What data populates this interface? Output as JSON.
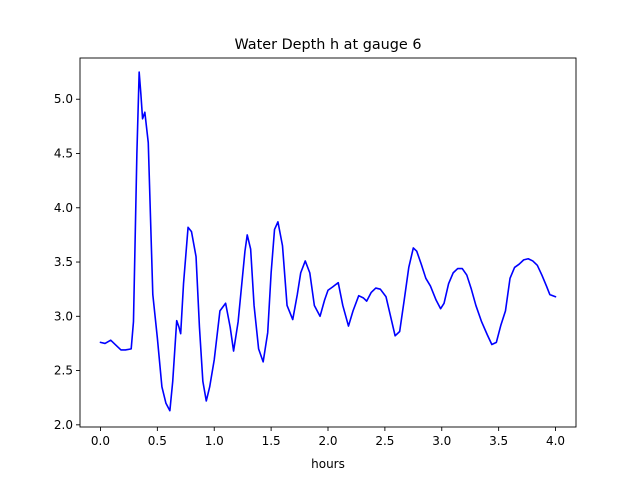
{
  "chart_data": {
    "type": "line",
    "title": "Water Depth h at gauge 6",
    "xlabel": "hours",
    "ylabel": "",
    "xlim": [
      -0.18,
      4.18
    ],
    "ylim": [
      1.98,
      5.38
    ],
    "xticks": [
      0.0,
      0.5,
      1.0,
      1.5,
      2.0,
      2.5,
      3.0,
      3.5,
      4.0
    ],
    "xtick_labels": [
      "0.0",
      "0.5",
      "1.0",
      "1.5",
      "2.0",
      "2.5",
      "3.0",
      "3.5",
      "4.0"
    ],
    "yticks": [
      2.0,
      2.5,
      3.0,
      3.5,
      4.0,
      4.5,
      5.0
    ],
    "ytick_labels": [
      "2.0",
      "2.5",
      "3.0",
      "3.5",
      "4.0",
      "4.5",
      "5.0"
    ],
    "grid": false,
    "legend": "none",
    "series": [
      {
        "color": "#0000ff",
        "points": [
          [
            0.0,
            2.76
          ],
          [
            0.04,
            2.75
          ],
          [
            0.09,
            2.78
          ],
          [
            0.13,
            2.74
          ],
          [
            0.18,
            2.69
          ],
          [
            0.22,
            2.69
          ],
          [
            0.27,
            2.7
          ],
          [
            0.29,
            2.95
          ],
          [
            0.32,
            4.5
          ],
          [
            0.34,
            5.25
          ],
          [
            0.355,
            5.05
          ],
          [
            0.37,
            4.82
          ],
          [
            0.39,
            4.88
          ],
          [
            0.42,
            4.6
          ],
          [
            0.46,
            3.2
          ],
          [
            0.5,
            2.8
          ],
          [
            0.54,
            2.35
          ],
          [
            0.575,
            2.2
          ],
          [
            0.61,
            2.13
          ],
          [
            0.635,
            2.4
          ],
          [
            0.67,
            2.96
          ],
          [
            0.69,
            2.9
          ],
          [
            0.705,
            2.84
          ],
          [
            0.73,
            3.3
          ],
          [
            0.77,
            3.82
          ],
          [
            0.8,
            3.78
          ],
          [
            0.84,
            3.55
          ],
          [
            0.87,
            2.9
          ],
          [
            0.9,
            2.4
          ],
          [
            0.93,
            2.22
          ],
          [
            0.96,
            2.35
          ],
          [
            1.0,
            2.6
          ],
          [
            1.05,
            3.05
          ],
          [
            1.1,
            3.12
          ],
          [
            1.14,
            2.9
          ],
          [
            1.17,
            2.68
          ],
          [
            1.21,
            2.95
          ],
          [
            1.27,
            3.6
          ],
          [
            1.29,
            3.75
          ],
          [
            1.32,
            3.62
          ],
          [
            1.35,
            3.1
          ],
          [
            1.39,
            2.7
          ],
          [
            1.43,
            2.58
          ],
          [
            1.47,
            2.85
          ],
          [
            1.5,
            3.4
          ],
          [
            1.53,
            3.8
          ],
          [
            1.56,
            3.87
          ],
          [
            1.6,
            3.65
          ],
          [
            1.64,
            3.1
          ],
          [
            1.69,
            2.97
          ],
          [
            1.73,
            3.2
          ],
          [
            1.76,
            3.4
          ],
          [
            1.8,
            3.51
          ],
          [
            1.84,
            3.4
          ],
          [
            1.88,
            3.1
          ],
          [
            1.93,
            3.0
          ],
          [
            1.97,
            3.15
          ],
          [
            2.0,
            3.24
          ],
          [
            2.04,
            3.27
          ],
          [
            2.09,
            3.31
          ],
          [
            2.13,
            3.1
          ],
          [
            2.18,
            2.91
          ],
          [
            2.22,
            3.05
          ],
          [
            2.27,
            3.19
          ],
          [
            2.31,
            3.17
          ],
          [
            2.34,
            3.14
          ],
          [
            2.38,
            3.22
          ],
          [
            2.42,
            3.26
          ],
          [
            2.46,
            3.25
          ],
          [
            2.51,
            3.18
          ],
          [
            2.55,
            3.0
          ],
          [
            2.59,
            2.82
          ],
          [
            2.63,
            2.86
          ],
          [
            2.67,
            3.15
          ],
          [
            2.71,
            3.45
          ],
          [
            2.75,
            3.63
          ],
          [
            2.78,
            3.6
          ],
          [
            2.82,
            3.48
          ],
          [
            2.86,
            3.35
          ],
          [
            2.9,
            3.28
          ],
          [
            2.95,
            3.15
          ],
          [
            2.99,
            3.07
          ],
          [
            3.02,
            3.12
          ],
          [
            3.06,
            3.3
          ],
          [
            3.1,
            3.4
          ],
          [
            3.14,
            3.44
          ],
          [
            3.18,
            3.44
          ],
          [
            3.22,
            3.38
          ],
          [
            3.26,
            3.25
          ],
          [
            3.3,
            3.1
          ],
          [
            3.35,
            2.95
          ],
          [
            3.4,
            2.83
          ],
          [
            3.44,
            2.74
          ],
          [
            3.48,
            2.76
          ],
          [
            3.52,
            2.92
          ],
          [
            3.56,
            3.05
          ],
          [
            3.6,
            3.35
          ],
          [
            3.64,
            3.45
          ],
          [
            3.68,
            3.48
          ],
          [
            3.72,
            3.52
          ],
          [
            3.76,
            3.53
          ],
          [
            3.8,
            3.51
          ],
          [
            3.84,
            3.47
          ],
          [
            3.88,
            3.38
          ],
          [
            3.92,
            3.28
          ],
          [
            3.95,
            3.2
          ],
          [
            4.0,
            3.18
          ]
        ]
      }
    ]
  }
}
